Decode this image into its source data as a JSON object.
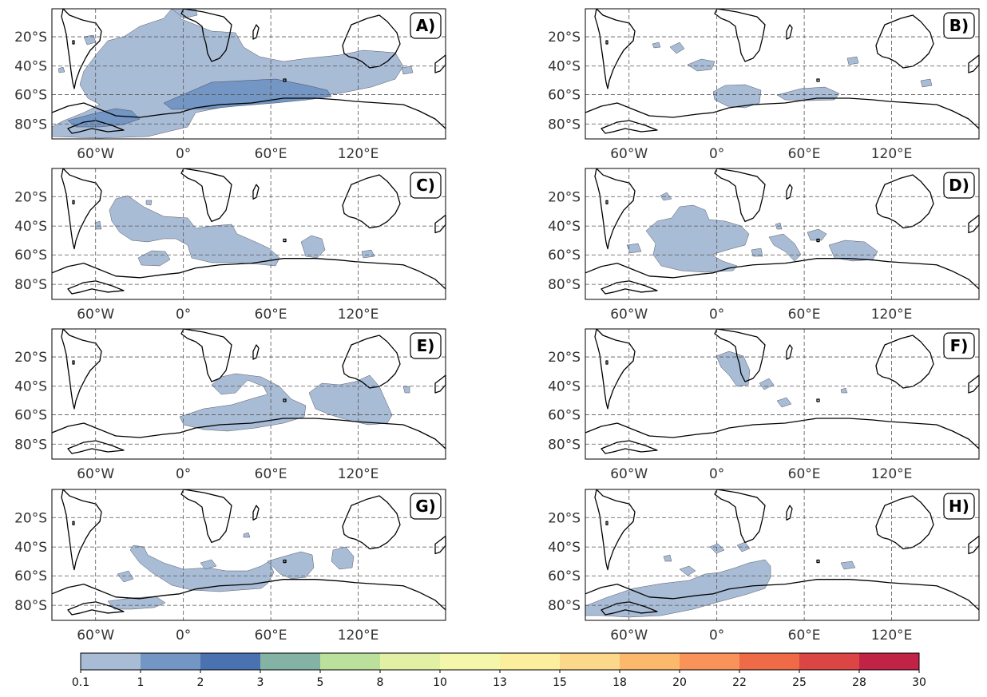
{
  "panels": [
    {
      "id": "A",
      "label": "A)"
    },
    {
      "id": "B",
      "label": "B)"
    },
    {
      "id": "C",
      "label": "C)"
    },
    {
      "id": "D",
      "label": "D)"
    },
    {
      "id": "E",
      "label": "E)"
    },
    {
      "id": "F",
      "label": "F)"
    },
    {
      "id": "G",
      "label": "G)"
    },
    {
      "id": "H",
      "label": "H)"
    }
  ],
  "axes": {
    "y_ticks": [
      "20°S",
      "40°S",
      "60°S",
      "80°S"
    ],
    "x_ticks": [
      "60°W",
      "0°",
      "60°E",
      "120°E"
    ]
  },
  "colorbar": {
    "ticks": [
      "0.1",
      "1",
      "2",
      "3",
      "5",
      "8",
      "10",
      "13",
      "15",
      "18",
      "20",
      "22",
      "25",
      "28",
      "30"
    ],
    "colors": [
      "#a9bcd6",
      "#7396c4",
      "#4a72b0",
      "#84b3a5",
      "#bbe09b",
      "#e1f0a3",
      "#f4f6ab",
      "#fbee9d",
      "#fcd98a",
      "#fdb96b",
      "#f9935a",
      "#ef6b48",
      "#db4543",
      "#c02346"
    ]
  },
  "colors": {
    "level1": "#a9bcd6",
    "level2": "#7396c4",
    "coast": "#000000",
    "grid": "#555555"
  }
}
